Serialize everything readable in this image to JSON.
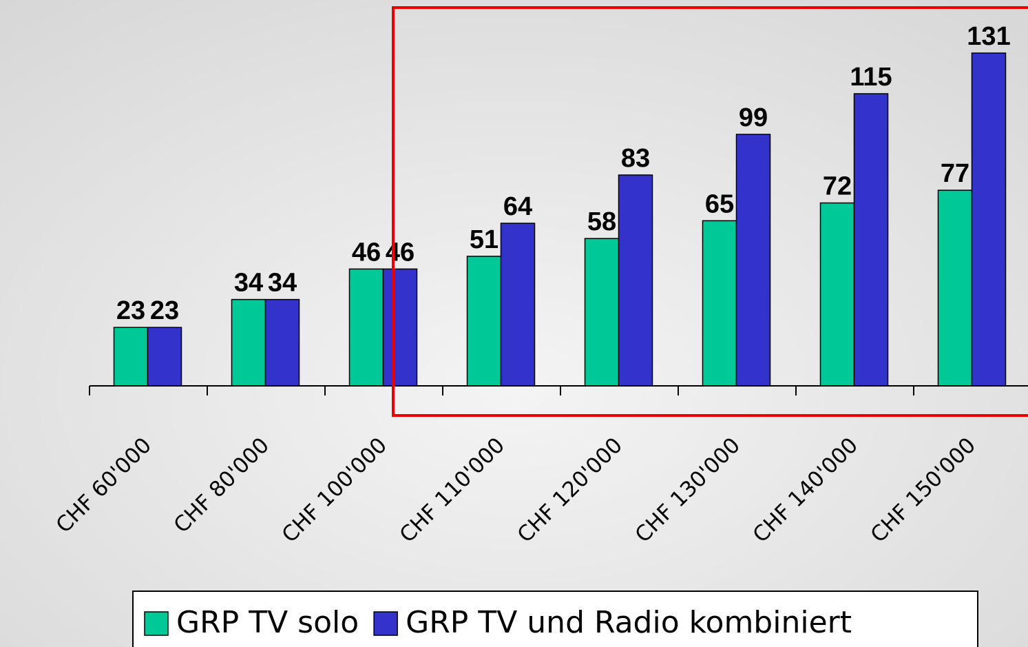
{
  "chart_data": {
    "type": "bar",
    "categories": [
      "CHF 60'000",
      "CHF 80'000",
      "CHF 100'000",
      "CHF 110'000",
      "CHF 120'000",
      "CHF 130'000",
      "CHF 140'000",
      "CHF 150'000"
    ],
    "series": [
      {
        "name": "GRP TV solo",
        "color": "#00c896",
        "values": [
          23,
          34,
          46,
          51,
          58,
          65,
          72,
          77
        ]
      },
      {
        "name": "GRP TV und Radio kombiniert",
        "color": "#3333cc",
        "values": [
          23,
          34,
          46,
          64,
          83,
          99,
          115,
          131
        ]
      }
    ]
  }
}
